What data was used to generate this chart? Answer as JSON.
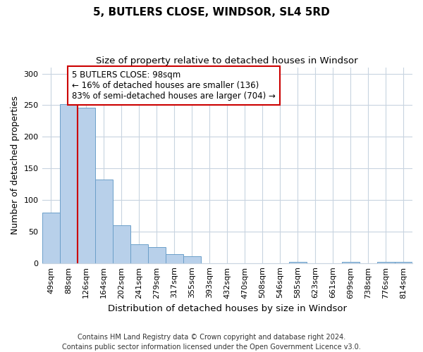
{
  "title": "5, BUTLERS CLOSE, WINDSOR, SL4 5RD",
  "subtitle": "Size of property relative to detached houses in Windsor",
  "xlabel": "Distribution of detached houses by size in Windsor",
  "ylabel": "Number of detached properties",
  "bar_labels": [
    "49sqm",
    "88sqm",
    "126sqm",
    "164sqm",
    "202sqm",
    "241sqm",
    "279sqm",
    "317sqm",
    "355sqm",
    "393sqm",
    "432sqm",
    "470sqm",
    "508sqm",
    "546sqm",
    "585sqm",
    "623sqm",
    "661sqm",
    "699sqm",
    "738sqm",
    "776sqm",
    "814sqm"
  ],
  "bar_values": [
    80,
    251,
    246,
    132,
    60,
    30,
    25,
    14,
    11,
    0,
    0,
    0,
    0,
    0,
    2,
    0,
    0,
    2,
    0,
    2,
    2
  ],
  "bar_color": "#b8d0ea",
  "bar_edgecolor": "#6b9fc9",
  "vline_x_index": 1,
  "vline_color": "#cc0000",
  "annotation_text": "5 BUTLERS CLOSE: 98sqm\n← 16% of detached houses are smaller (136)\n83% of semi-detached houses are larger (704) →",
  "annotation_box_edgecolor": "#cc0000",
  "annotation_box_facecolor": "#ffffff",
  "ylim": [
    0,
    310
  ],
  "yticks": [
    0,
    50,
    100,
    150,
    200,
    250,
    300
  ],
  "title_fontsize": 11,
  "subtitle_fontsize": 9.5,
  "xlabel_fontsize": 9.5,
  "ylabel_fontsize": 9,
  "tick_fontsize": 8,
  "annotation_fontsize": 8.5,
  "footer_text": "Contains HM Land Registry data © Crown copyright and database right 2024.\nContains public sector information licensed under the Open Government Licence v3.0.",
  "background_color": "#ffffff",
  "grid_color": "#c8d4e0"
}
